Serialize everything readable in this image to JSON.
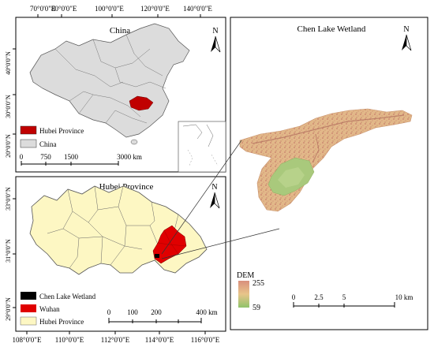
{
  "top_lon_ticks": [
    "70°0'0\"E",
    "80°0'0\"E",
    "100°0'0\"E",
    "120°0'0\"E",
    "140°0'0\"E"
  ],
  "china_lat_ticks": [
    "40°0'0\"N",
    "30°0'0\"N",
    "20°0'0\"N"
  ],
  "china_panel": {
    "title": "China",
    "legend": [
      {
        "label": "Hubei Province",
        "color": "#c00000"
      },
      {
        "label": "China",
        "color": "#dcdcdc"
      }
    ],
    "scale_labels": [
      "0",
      "750",
      "1500",
      "3000 km"
    ],
    "north": "N"
  },
  "hubei_panel": {
    "title": "Hubei Province",
    "lat_ticks": [
      "33°0'0\"N",
      "31°0'0\"N",
      "29°0'0\"N"
    ],
    "legend": [
      {
        "label": "Chen Lake Wetland",
        "color": "#000000"
      },
      {
        "label": "Wuhan",
        "color": "#e00000"
      },
      {
        "label": "Hubei Province",
        "color": "#fdf7c3"
      }
    ],
    "scale_labels": [
      "0",
      "100",
      "200",
      "400 km"
    ],
    "north": "N"
  },
  "bottom_lon_ticks": [
    "108°0'0\"E",
    "110°0'0\"E",
    "112°0'0\"E",
    "114°0'0\"E",
    "116°0'0\"E"
  ],
  "wetland_panel": {
    "title": "Chen Lake Wetland",
    "north": "N",
    "dem_title": "DEM",
    "dem_max": "255",
    "dem_min": "59",
    "scale_labels": [
      "0",
      "2.5",
      "5",
      "10 km"
    ]
  },
  "colors": {
    "hubei_fill": "#fdf7c3",
    "wuhan_fill": "#e00000",
    "china_fill": "#dcdcdc",
    "hubei_in_china": "#c00000",
    "dem_high": "#d98f7c",
    "dem_mid": "#e8c58a",
    "dem_low": "#8fc36a"
  }
}
